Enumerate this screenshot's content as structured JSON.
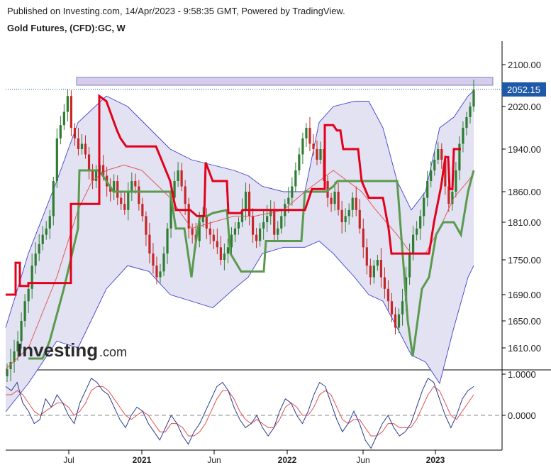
{
  "header": {
    "published": "Published on Investing.com, 14/Apr/2023 - 9:58:35 GMT, Powered by TradingView.",
    "title": "Gold Futures, (CFD):GC, W"
  },
  "logo": {
    "brand": "Investing",
    "suffix": ".com"
  },
  "colors": {
    "up": "#2e7d32",
    "down": "#c62828",
    "band_fill": "#e2e2f2",
    "band_line": "#3f3fd0",
    "trend": "#e3001b",
    "signal": "#5a9a4e",
    "ma": "#e05a5a",
    "zone": "#c9c0e6",
    "price_tag": "#1e5aa8",
    "osc_main": "#2a3a8a",
    "osc_sig": "#e05050"
  },
  "chart_data": [
    {
      "type": "candlestick",
      "title": "Gold Futures, (CFD):GC, W",
      "y_ticks": [
        "2100.00",
        "2020.00",
        "1940.00",
        "1860.00",
        "1810.00",
        "1750.00",
        "1690.00",
        "1650.00",
        "1610.00"
      ],
      "ylim": [
        1580,
        2135
      ],
      "x_ticks": [
        {
          "label": "Jul",
          "bold": false
        },
        {
          "label": "2021",
          "bold": true
        },
        {
          "label": "Jun",
          "bold": false
        },
        {
          "label": "2022",
          "bold": true
        },
        {
          "label": "Jun",
          "bold": false
        },
        {
          "label": "2023",
          "bold": true
        }
      ],
      "last_price": "2052.15",
      "resistance_zone": [
        2053,
        2068
      ],
      "close_series": [
        1580,
        1590,
        1605,
        1620,
        1650,
        1680,
        1700,
        1740,
        1760,
        1775,
        1790,
        1800,
        1820,
        1880,
        1960,
        1985,
        2010,
        2040,
        1980,
        1960,
        1940,
        1950,
        1930,
        1900,
        1880,
        1900,
        1910,
        1890,
        1870,
        1860,
        1880,
        1850,
        1840,
        1830,
        1860,
        1880,
        1870,
        1840,
        1820,
        1790,
        1760,
        1740,
        1720,
        1730,
        1760,
        1800,
        1850,
        1880,
        1900,
        1870,
        1840,
        1800,
        1790,
        1780,
        1810,
        1820,
        1800,
        1790,
        1780,
        1770,
        1750,
        1760,
        1770,
        1790,
        1800,
        1810,
        1830,
        1860,
        1820,
        1790,
        1780,
        1800,
        1810,
        1820,
        1830,
        1790,
        1800,
        1820,
        1840,
        1850,
        1870,
        1900,
        1930,
        1960,
        1980,
        1950,
        1940,
        1920,
        1940,
        1880,
        1850,
        1840,
        1860,
        1830,
        1810,
        1820,
        1830,
        1850,
        1830,
        1800,
        1770,
        1740,
        1720,
        1740,
        1750,
        1720,
        1700,
        1680,
        1660,
        1640,
        1660,
        1680,
        1720,
        1760,
        1790,
        1800,
        1820,
        1850,
        1880,
        1900,
        1920,
        1940,
        1920,
        1870,
        1840,
        1860,
        1900,
        1950,
        1980,
        2000,
        2020,
        2052
      ],
      "trend_stop": [
        [
          8,
          1690
        ],
        [
          22,
          1690
        ],
        [
          22,
          1745
        ],
        [
          28,
          1745
        ],
        [
          28,
          1705
        ],
        [
          40,
          1705
        ],
        [
          40,
          1710
        ],
        [
          100,
          1710
        ],
        [
          100,
          1840
        ],
        [
          140,
          1840
        ],
        [
          140,
          2040
        ],
        [
          150,
          2030
        ],
        [
          165,
          1975
        ],
        [
          170,
          1960
        ],
        [
          178,
          1945
        ],
        [
          220,
          1945
        ],
        [
          240,
          1880
        ],
        [
          248,
          1830
        ],
        [
          265,
          1830
        ],
        [
          268,
          1830
        ],
        [
          278,
          1820
        ],
        [
          288,
          1820
        ],
        [
          290,
          1915
        ],
        [
          300,
          1880
        ],
        [
          320,
          1880
        ],
        [
          322,
          1825
        ],
        [
          340,
          1825
        ],
        [
          342,
          1830
        ],
        [
          420,
          1830
        ],
        [
          420,
          1830
        ],
        [
          430,
          1830
        ],
        [
          440,
          1865
        ],
        [
          458,
          1865
        ],
        [
          458,
          1985
        ],
        [
          470,
          1985
        ],
        [
          475,
          1975
        ],
        [
          480,
          1975
        ],
        [
          484,
          1940
        ],
        [
          505,
          1940
        ],
        [
          510,
          1880
        ],
        [
          520,
          1850
        ],
        [
          540,
          1850
        ],
        [
          548,
          1800
        ],
        [
          552,
          1760
        ],
        [
          580,
          1760
        ],
        [
          580,
          1760
        ],
        [
          600,
          1760
        ],
        [
          605,
          1760
        ],
        [
          612,
          1810
        ],
        [
          622,
          1870
        ],
        [
          628,
          1925
        ],
        [
          632,
          1925
        ],
        [
          634,
          1865
        ],
        [
          638,
          1865
        ],
        [
          640,
          1940
        ],
        [
          650,
          1940
        ]
      ],
      "signal_line": [
        [
          40,
          1595
        ],
        [
          60,
          1595
        ],
        [
          70,
          1620
        ],
        [
          90,
          1700
        ],
        [
          110,
          1800
        ],
        [
          112,
          1900
        ],
        [
          140,
          1900
        ],
        [
          140,
          1900
        ],
        [
          160,
          1860
        ],
        [
          240,
          1860
        ],
        [
          248,
          1800
        ],
        [
          260,
          1800
        ],
        [
          270,
          1720
        ],
        [
          275,
          1770
        ],
        [
          282,
          1820
        ],
        [
          292,
          1820
        ],
        [
          300,
          1825
        ],
        [
          320,
          1830
        ],
        [
          325,
          1760
        ],
        [
          340,
          1730
        ],
        [
          372,
          1730
        ],
        [
          375,
          1780
        ],
        [
          425,
          1780
        ],
        [
          430,
          1860
        ],
        [
          460,
          1860
        ],
        [
          470,
          1870
        ],
        [
          476,
          1880
        ],
        [
          505,
          1880
        ],
        [
          510,
          1880
        ],
        [
          560,
          1880
        ],
        [
          575,
          1650
        ],
        [
          582,
          1598
        ],
        [
          595,
          1700
        ],
        [
          605,
          1720
        ],
        [
          615,
          1790
        ],
        [
          625,
          1810
        ],
        [
          640,
          1810
        ],
        [
          650,
          1790
        ],
        [
          660,
          1860
        ],
        [
          668,
          1900
        ]
      ],
      "ma_line": [
        [
          8,
          1580
        ],
        [
          40,
          1610
        ],
        [
          80,
          1720
        ],
        [
          110,
          1830
        ],
        [
          130,
          1880
        ],
        [
          150,
          1900
        ],
        [
          175,
          1910
        ],
        [
          200,
          1900
        ],
        [
          240,
          1850
        ],
        [
          270,
          1800
        ],
        [
          300,
          1810
        ],
        [
          330,
          1820
        ],
        [
          360,
          1820
        ],
        [
          400,
          1830
        ],
        [
          430,
          1860
        ],
        [
          450,
          1880
        ],
        [
          470,
          1900
        ],
        [
          490,
          1880
        ],
        [
          510,
          1860
        ],
        [
          530,
          1830
        ],
        [
          560,
          1790
        ],
        [
          580,
          1760
        ],
        [
          600,
          1760
        ],
        [
          620,
          1800
        ],
        [
          640,
          1850
        ],
        [
          660,
          1880
        ],
        [
          668,
          1895
        ]
      ],
      "band_upper": [
        [
          8,
          1640
        ],
        [
          40,
          1760
        ],
        [
          80,
          1880
        ],
        [
          110,
          1990
        ],
        [
          150,
          2040
        ],
        [
          180,
          2020
        ],
        [
          210,
          1980
        ],
        [
          240,
          1940
        ],
        [
          270,
          1920
        ],
        [
          300,
          1910
        ],
        [
          330,
          1900
        ],
        [
          350,
          1890
        ],
        [
          370,
          1870
        ],
        [
          400,
          1860
        ],
        [
          430,
          1860
        ],
        [
          450,
          1990
        ],
        [
          470,
          2020
        ],
        [
          500,
          2030
        ],
        [
          520,
          2030
        ],
        [
          540,
          1980
        ],
        [
          560,
          1880
        ],
        [
          580,
          1830
        ],
        [
          600,
          1860
        ],
        [
          620,
          1980
        ],
        [
          640,
          2000
        ],
        [
          660,
          2040
        ],
        [
          668,
          2050
        ]
      ],
      "band_lower": [
        [
          8,
          1520
        ],
        [
          40,
          1560
        ],
        [
          80,
          1620
        ],
        [
          110,
          1610
        ],
        [
          150,
          1700
        ],
        [
          180,
          1740
        ],
        [
          210,
          1730
        ],
        [
          240,
          1690
        ],
        [
          270,
          1680
        ],
        [
          300,
          1670
        ],
        [
          330,
          1700
        ],
        [
          350,
          1720
        ],
        [
          370,
          1760
        ],
        [
          400,
          1770
        ],
        [
          430,
          1770
        ],
        [
          450,
          1780
        ],
        [
          470,
          1760
        ],
        [
          500,
          1720
        ],
        [
          520,
          1690
        ],
        [
          540,
          1680
        ],
        [
          560,
          1640
        ],
        [
          580,
          1600
        ],
        [
          600,
          1590
        ],
        [
          620,
          1560
        ],
        [
          640,
          1640
        ],
        [
          660,
          1720
        ],
        [
          668,
          1740
        ]
      ]
    },
    {
      "type": "line",
      "y_ticks": [
        "1.0000",
        "0.0000"
      ],
      "ylim": [
        -1.0,
        1.05
      ],
      "series": [
        {
          "values": [
            0.7,
            0.6,
            0.8,
            0.3,
            0.1,
            -0.2,
            -0.1,
            0.4,
            0.2,
            0.5,
            0.3,
            0.0,
            -0.2,
            0.3,
            0.6,
            0.9,
            0.8,
            0.6,
            0.5,
            0.2,
            -0.1,
            -0.3,
            0.0,
            0.2,
            0.1,
            -0.2,
            -0.4,
            -0.6,
            -0.3,
            0.0,
            -0.2,
            -0.5,
            -0.7,
            -0.4,
            -0.2,
            0.1,
            0.4,
            0.7,
            0.8,
            0.6,
            0.2,
            -0.1,
            -0.3,
            -0.2,
            0.0,
            -0.3,
            -0.5,
            -0.3,
            0.1,
            0.4,
            0.3,
            0.0,
            -0.2,
            0.1,
            0.5,
            0.8,
            0.7,
            0.3,
            -0.1,
            -0.4,
            -0.2,
            0.1,
            -0.2,
            -0.6,
            -0.8,
            -0.5,
            -0.2,
            0.0,
            -0.3,
            -0.5,
            -0.4,
            -0.2,
            0.2,
            0.6,
            0.9,
            0.8,
            0.4,
            0.0,
            -0.3,
            0.0,
            0.4,
            0.6,
            0.7
          ]
        },
        {
          "values": [
            0.5,
            0.5,
            0.6,
            0.5,
            0.3,
            0.1,
            0.0,
            0.1,
            0.2,
            0.3,
            0.3,
            0.2,
            0.0,
            0.1,
            0.3,
            0.6,
            0.7,
            0.7,
            0.6,
            0.4,
            0.2,
            0.0,
            -0.1,
            0.0,
            0.1,
            0.0,
            -0.2,
            -0.4,
            -0.4,
            -0.2,
            -0.2,
            -0.3,
            -0.5,
            -0.5,
            -0.4,
            -0.2,
            0.1,
            0.4,
            0.6,
            0.6,
            0.4,
            0.1,
            -0.1,
            -0.2,
            -0.1,
            -0.2,
            -0.3,
            -0.3,
            -0.1,
            0.2,
            0.3,
            0.2,
            0.0,
            0.0,
            0.2,
            0.5,
            0.6,
            0.5,
            0.2,
            -0.1,
            -0.2,
            -0.1,
            -0.1,
            -0.3,
            -0.5,
            -0.5,
            -0.4,
            -0.2,
            -0.2,
            -0.3,
            -0.3,
            -0.3,
            -0.1,
            0.2,
            0.5,
            0.7,
            0.6,
            0.3,
            0.0,
            -0.1,
            0.1,
            0.3,
            0.5
          ]
        }
      ]
    }
  ]
}
